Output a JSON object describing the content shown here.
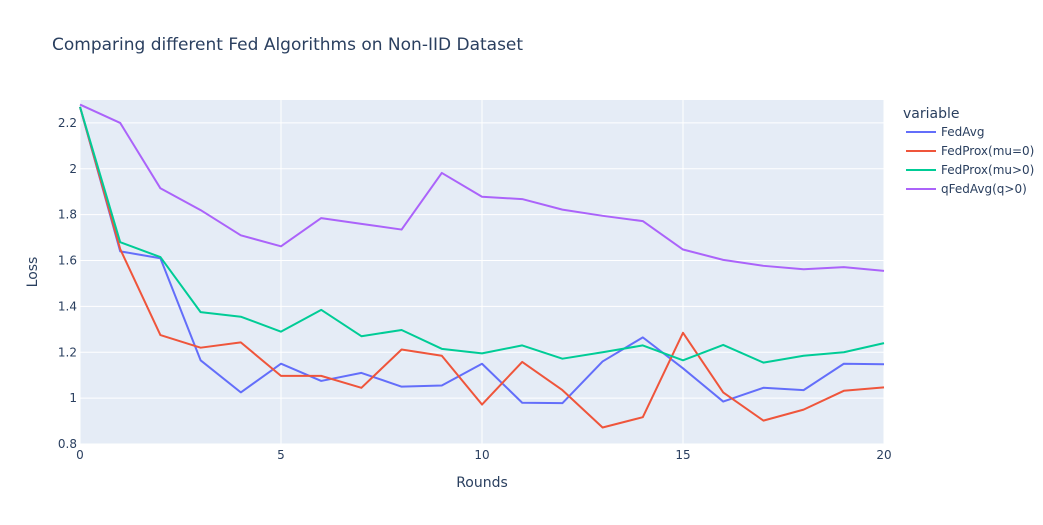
{
  "chart_data": {
    "type": "line",
    "title": "Comparing different Fed Algorithms on Non-IID Dataset",
    "xlabel": "Rounds",
    "ylabel": "Loss",
    "xlim": [
      0,
      20
    ],
    "ylim": [
      0.8,
      2.3
    ],
    "x_ticks": [
      0,
      5,
      10,
      15,
      20
    ],
    "y_ticks": [
      0.8,
      1,
      1.2,
      1.4,
      1.6,
      1.8,
      2,
      2.2
    ],
    "y_tick_labels": [
      "0.8",
      "1",
      "1.2",
      "1.4",
      "1.6",
      "1.8",
      "2",
      "2.2"
    ],
    "grid": true,
    "legend_title": "variable",
    "legend_position": "right",
    "x": [
      0,
      1,
      2,
      3,
      4,
      5,
      6,
      7,
      8,
      9,
      10,
      11,
      12,
      13,
      14,
      15,
      16,
      17,
      18,
      19,
      20
    ],
    "series": [
      {
        "name": "FedAvg",
        "color": "#636efa",
        "values": [
          2.27,
          1.64,
          1.61,
          1.165,
          1.025,
          1.15,
          1.075,
          1.11,
          1.05,
          1.055,
          1.15,
          0.98,
          0.978,
          1.16,
          1.265,
          1.13,
          0.985,
          1.045,
          1.035,
          1.15,
          1.148
        ]
      },
      {
        "name": "FedProx(mu=0)",
        "color": "#ef553b",
        "values": [
          2.27,
          1.65,
          1.275,
          1.22,
          1.243,
          1.097,
          1.097,
          1.045,
          1.212,
          1.185,
          0.972,
          1.158,
          1.035,
          0.872,
          0.917,
          1.285,
          1.025,
          0.902,
          0.95,
          1.032,
          1.047
        ]
      },
      {
        "name": "FedProx(mu>0)",
        "color": "#00cc96",
        "values": [
          2.27,
          1.68,
          1.615,
          1.375,
          1.355,
          1.29,
          1.385,
          1.27,
          1.297,
          1.215,
          1.195,
          1.23,
          1.172,
          1.2,
          1.23,
          1.165,
          1.232,
          1.155,
          1.185,
          1.2,
          1.24
        ]
      },
      {
        "name": "qFedAvg(q>0)",
        "color": "#ab63fa",
        "values": [
          2.28,
          2.2,
          1.915,
          1.82,
          1.71,
          1.662,
          1.785,
          1.76,
          1.735,
          1.982,
          1.878,
          1.868,
          1.822,
          1.795,
          1.772,
          1.648,
          1.603,
          1.577,
          1.562,
          1.571,
          1.555
        ]
      }
    ]
  }
}
